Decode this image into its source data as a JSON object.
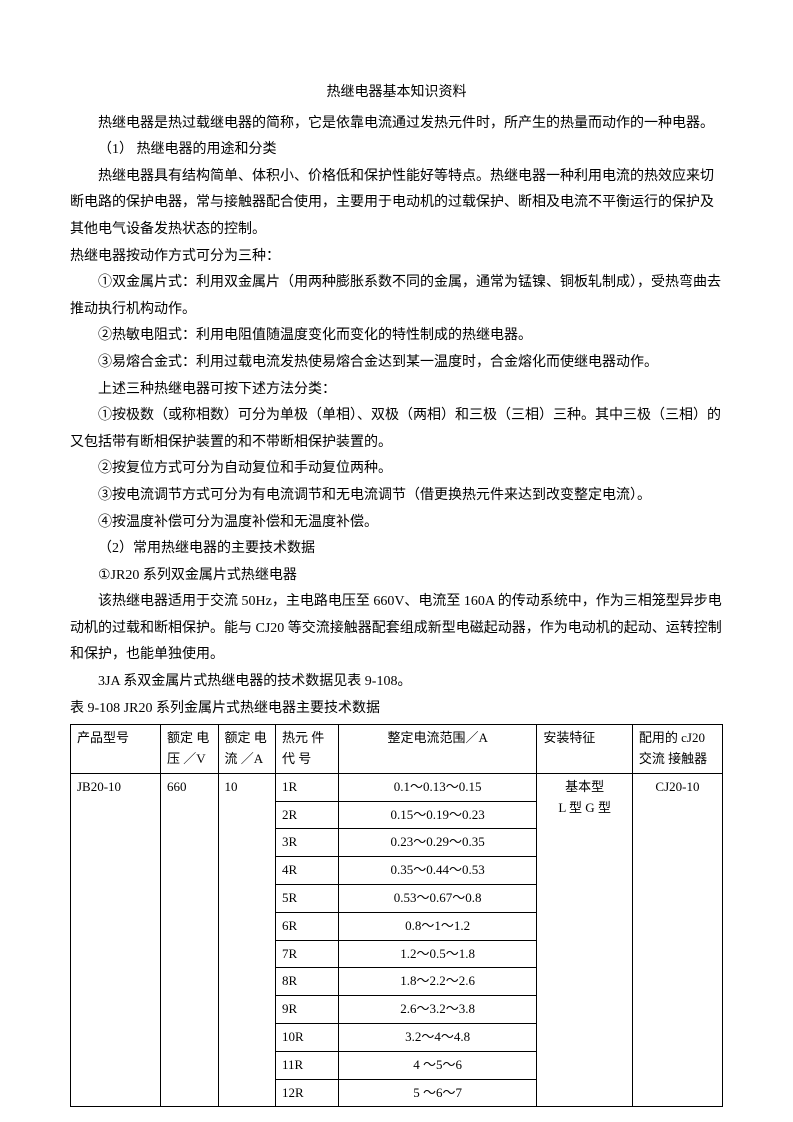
{
  "title": "热继电器基本知识资料",
  "p1": "热继电器是热过载继电器的简称，它是依靠电流通过发热元件时，所产生的热量而动作的一种电器。",
  "s1": "（1）  热继电器的用途和分类",
  "p2": "热继电器具有结构简单、体积小、价格低和保护性能好等特点。热继电器一种利用电流的热效应来切断电路的保护电器，常与接触器配合使用，主要用于电动机的过载保护、断相及电流不平衡运行的保护及其他电气设备发热状态的控制。",
  "p3": "热继电器按动作方式可分为三种：",
  "p4": "①双金属片式：利用双金属片（用两种膨胀系数不同的金属，通常为锰镍、铜板轧制成），受热弯曲去推动执行机构动作。",
  "p5": "②热敏电阻式：利用电阻值随温度变化而变化的特性制成的热继电器。",
  "p6": "③易熔合金式：利用过载电流发热使易熔合金达到某一温度时，合金熔化而使继电器动作。",
  "p7": "上述三种热继电器可按下述方法分类：",
  "p8": "①按极数（或称相数）可分为单极（单相）、双极（两相）和三极（三相）三种。其中三极（三相）的又包括带有断相保护装置的和不带断相保护装置的。",
  "p9": "②按复位方式可分为自动复位和手动复位两种。",
  "p10": "③按电流调节方式可分为有电流调节和无电流调节（借更换热元件来达到改变整定电流）。",
  "p11": "④按温度补偿可分为温度补偿和无温度补偿。",
  "s2": "（2）常用热继电器的主要技术数据",
  "s3": "①JR20 系列双金属片式热继电器",
  "p12": "该热继电器适用于交流 50Hz，主电路电压至 660V、电流至 160A 的传动系统中，作为三相笼型异步电动机的过载和断相保护。能与 CJ20 等交流接触器配套组成新型电磁起动器，作为电动机的起动、运转控制和保护，也能单独使用。",
  "p13": "3JA 系双金属片式热继电器的技术数据见表 9-108。",
  "p14": "表 9-108 JR20   系列金属片式热继电器主要技术数据",
  "table": {
    "headers": {
      "model": "产品型号",
      "voltage": "额定\n电压\n／V",
      "current": "额定\n电流\n／A",
      "code": "热元\n件代\n号",
      "range": "整定电流范围／A",
      "install": "安装特征",
      "match": "配用的\ncJ20 交流\n接触器"
    },
    "model_value": "JB20-10",
    "voltage_value": "660",
    "current_value": "10",
    "install_value": "基本型\nL 型   G 型",
    "match_value": "CJ20-10",
    "rows": [
      {
        "code": "1R",
        "range": "0.1～0.13～0.15"
      },
      {
        "code": "2R",
        "range": "0.15～0.19～0.23"
      },
      {
        "code": "3R",
        "range": "0.23～0.29～0.35"
      },
      {
        "code": "4R",
        "range": "0.35～0.44～0.53"
      },
      {
        "code": "5R",
        "range": "0.53～0.67～0.8"
      },
      {
        "code": "6R",
        "range": "0.8～1～1.2"
      },
      {
        "code": "7R",
        "range": "1.2～0.5～1.8"
      },
      {
        "code": "8R",
        "range": "1.8～2.2～2.6"
      },
      {
        "code": "9R",
        "range": "2.6～3.2～3.8"
      },
      {
        "code": "10R",
        "range": "3.2～4～4.8"
      },
      {
        "code": "11R",
        "range": "4 ～5～6"
      },
      {
        "code": "12R",
        "range": "5  ～6～7"
      }
    ]
  }
}
